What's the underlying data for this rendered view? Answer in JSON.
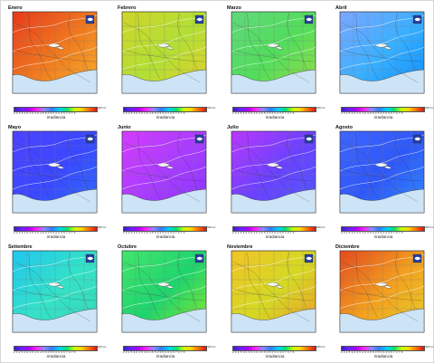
{
  "figure": {
    "colorbar_label": "irradiancia",
    "colorbar_unit": "kWh/m²",
    "colorbar_ticks": "2.0 2.5 3.0 3.5 4.0 4.5 5.0 5.5 6.0 6.5 7.0 7.5"
  },
  "months": [
    {
      "name": "Enero",
      "colors": [
        "#e73a1d",
        "#f07a1f",
        "#f5b22c"
      ]
    },
    {
      "name": "Febrero",
      "colors": [
        "#cfd52a",
        "#b2df36",
        "#e7cf28"
      ]
    },
    {
      "name": "Marzo",
      "colors": [
        "#61d87d",
        "#52dd5b",
        "#9add49"
      ]
    },
    {
      "name": "Abril",
      "colors": [
        "#7ea6ff",
        "#39b0ff",
        "#0a8dff"
      ]
    },
    {
      "name": "Mayo",
      "colors": [
        "#4d42ff",
        "#3a48ff",
        "#2f6eff"
      ]
    },
    {
      "name": "Junio",
      "colors": [
        "#d53cff",
        "#a73cff",
        "#8a36ff"
      ]
    },
    {
      "name": "Julio",
      "colors": [
        "#ba36ff",
        "#6942ff",
        "#4f5aff"
      ]
    },
    {
      "name": "Agosto",
      "colors": [
        "#3f64ff",
        "#2f58f7",
        "#2f8cff"
      ]
    },
    {
      "name": "Setiembre",
      "colors": [
        "#20c6f0",
        "#34e2c7",
        "#39d7b6"
      ]
    },
    {
      "name": "Octubre",
      "colors": [
        "#43e56d",
        "#1ed46e",
        "#8ceb2b"
      ]
    },
    {
      "name": "Noviembre",
      "colors": [
        "#f1c327",
        "#d4d923",
        "#f09b2c"
      ]
    },
    {
      "name": "Diciembre",
      "colors": [
        "#e44a1f",
        "#f2a01f",
        "#e7d12a"
      ]
    }
  ]
}
